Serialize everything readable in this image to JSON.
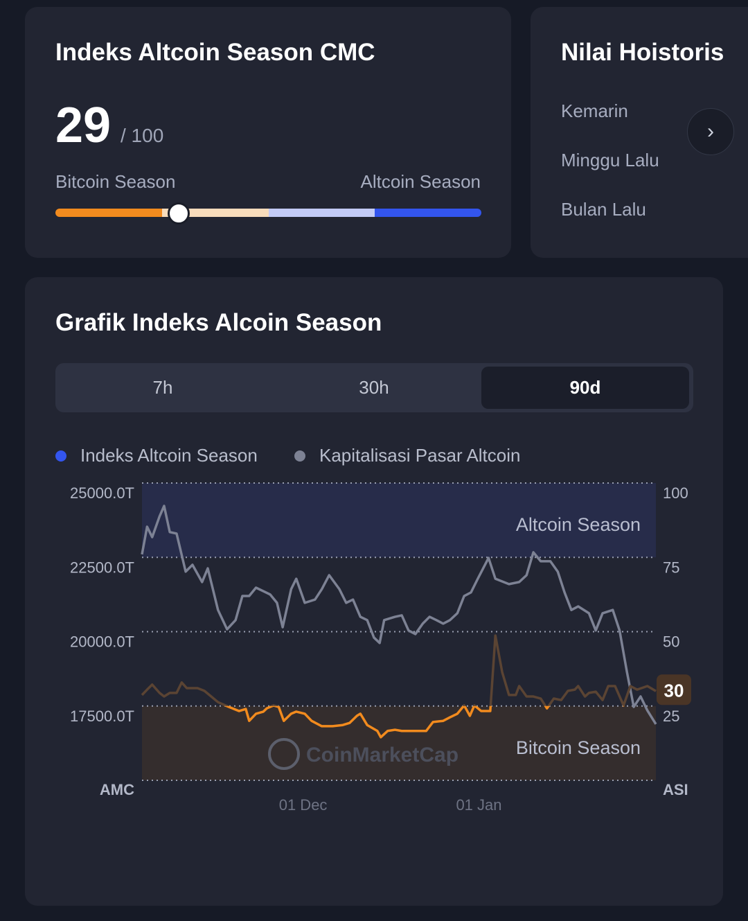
{
  "index_card": {
    "title": "Indeks Altcoin Season CMC",
    "value": "29",
    "max": "/ 100",
    "left_label": "Bitcoin Season",
    "right_label": "Altcoin Season",
    "gauge_value": 29,
    "gauge_colors": [
      "#f28b1e",
      "#f8dcbc",
      "#c3cbf6",
      "#3355ee"
    ]
  },
  "history_card": {
    "title": "Nilai Hoistoris",
    "items": [
      "Kemarin",
      "Minggu Lalu",
      "Bulan Lalu"
    ],
    "next_icon": "chevron-right-icon"
  },
  "chart_card": {
    "title": "Grafik Indeks Alcoin Season",
    "tabs": [
      "7h",
      "30h",
      "90d"
    ],
    "active_tab": "90d"
  },
  "chart_data": {
    "type": "line",
    "legend": [
      {
        "label": "Indeks Altcoin Season",
        "color": "#3355ee"
      },
      {
        "label": "Kapitalisasi Pasar Altcoin",
        "color": "#7d8294"
      }
    ],
    "left_axis": {
      "title": "AMC",
      "ticks": [
        "25000.0T",
        "22500.0T",
        "20000.0T",
        "17500.0T"
      ],
      "tick_values": [
        25000,
        22500,
        20000,
        17500
      ],
      "range": [
        15000,
        25000
      ]
    },
    "right_axis": {
      "title": "ASI",
      "ticks": [
        "100",
        "75",
        "50",
        "25"
      ],
      "tick_values": [
        100,
        75,
        50,
        25
      ],
      "range": [
        0,
        100
      ]
    },
    "x_axis": {
      "unit": "days since start",
      "range": [
        0,
        90.6
      ],
      "ticks": [
        {
          "label": "01 Dec",
          "x": 28.4
        },
        {
          "label": "01 Jan",
          "x": 59.4
        }
      ]
    },
    "zones": [
      {
        "label": "Altcoin Season",
        "from": 75,
        "to": 100,
        "color": "#272c4a"
      },
      {
        "label": "Bitcoin Season",
        "from": 0,
        "to": 25,
        "color": "#342d2d"
      }
    ],
    "current_label": "30",
    "watermark": "CoinMarketCap",
    "series": [
      {
        "name": "Kapitalisasi Pasar Altcoin",
        "axis": "left",
        "color": "#7d8294",
        "x": [
          0,
          0.9,
          1.8,
          3.1,
          3.9,
          4.9,
          6.1,
          7.7,
          8.9,
          10.6,
          11.6,
          13.4,
          15.0,
          16.5,
          17.7,
          18.9,
          20.1,
          22.6,
          23.8,
          24.8,
          26.3,
          27.2,
          28.7,
          30.5,
          31.7,
          33.0,
          34.8,
          36.0,
          37.2,
          38.5,
          39.7,
          40.9,
          41.9,
          42.7,
          44.6,
          45.8,
          47.0,
          48.2,
          49.5,
          50.7,
          51.9,
          53.1,
          54.3,
          55.6,
          56.8,
          58.0,
          59.2,
          61.1,
          62.3,
          64.7,
          66.5,
          67.8,
          69.0,
          70.3,
          72.0,
          73.3,
          74.5,
          75.7,
          76.9,
          78.8,
          80.0,
          81.2,
          83.0,
          84.2,
          85.5,
          86.7,
          87.9,
          89.1,
          90.6
        ],
        "y": [
          22600,
          23530,
          23180,
          23880,
          24230,
          23350,
          23300,
          22020,
          22250,
          21670,
          22130,
          20730,
          20080,
          20390,
          21200,
          21200,
          21480,
          21250,
          20970,
          20150,
          21430,
          21780,
          20970,
          21080,
          21430,
          21900,
          21430,
          20970,
          21080,
          20500,
          20390,
          19800,
          19620,
          20390,
          20500,
          20550,
          20040,
          19920,
          20270,
          20500,
          20390,
          20270,
          20390,
          20620,
          21200,
          21320,
          21780,
          22480,
          21780,
          21600,
          21670,
          21900,
          22670,
          22370,
          22370,
          22020,
          21320,
          20730,
          20850,
          20620,
          20040,
          20620,
          20730,
          20040,
          18640,
          17470,
          17820,
          17350,
          16890
        ]
      },
      {
        "name": "Indeks Altcoin Season",
        "axis": "right",
        "color": "#f28b1e",
        "x": [
          0,
          0.9,
          1.8,
          3.1,
          3.9,
          4.9,
          6.1,
          7.0,
          7.9,
          9.8,
          11.0,
          12.2,
          13.4,
          15.3,
          17.1,
          18.3,
          18.9,
          20.1,
          21.4,
          22.0,
          23.2,
          24.1,
          25.0,
          26.3,
          27.2,
          28.7,
          29.9,
          31.7,
          33.6,
          35.4,
          36.6,
          37.9,
          38.5,
          39.7,
          41.5,
          42.1,
          43.3,
          44.6,
          45.8,
          48.2,
          50.1,
          51.3,
          53.1,
          54.3,
          55.6,
          56.8,
          57.8,
          58.6,
          59.8,
          61.4,
          62.3,
          63.5,
          64.7,
          65.9,
          66.5,
          67.8,
          69.0,
          70.3,
          71.4,
          72.6,
          73.9,
          75.1,
          76.3,
          76.9,
          78.1,
          78.8,
          80.0,
          81.2,
          82.2,
          83.4,
          84.9,
          86.1,
          87.3,
          89.1,
          90.6
        ],
        "y": [
          28.7,
          30.5,
          32.2,
          29.4,
          28.2,
          29.4,
          29.4,
          32.9,
          31.0,
          31.0,
          30.1,
          28.2,
          26.3,
          24.7,
          23.3,
          24.0,
          20.0,
          22.4,
          23.1,
          24.2,
          25.2,
          24.7,
          20.0,
          22.4,
          23.1,
          22.4,
          20.0,
          18.2,
          18.2,
          18.6,
          19.3,
          21.7,
          22.4,
          18.6,
          16.6,
          14.5,
          16.6,
          17.0,
          16.6,
          16.6,
          16.6,
          19.6,
          20.0,
          21.2,
          22.4,
          25.2,
          21.7,
          25.2,
          23.3,
          23.3,
          48.7,
          36.4,
          28.7,
          28.7,
          31.7,
          28.2,
          28.2,
          27.5,
          24.2,
          27.5,
          27.0,
          30.1,
          30.5,
          31.7,
          28.2,
          29.4,
          29.8,
          27.0,
          31.7,
          31.7,
          25.2,
          31.7,
          30.5,
          31.7,
          30.0
        ]
      }
    ]
  }
}
